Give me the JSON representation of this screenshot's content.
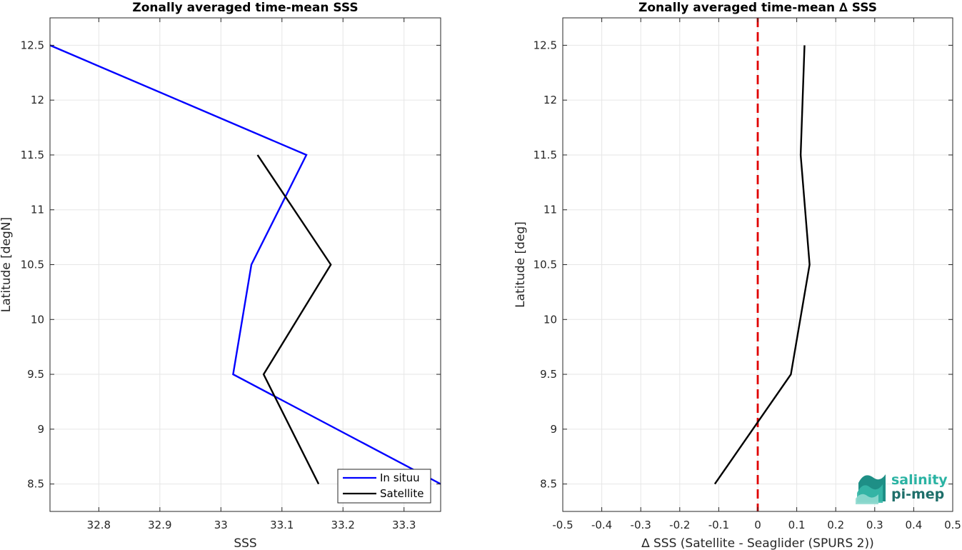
{
  "chart_data": [
    {
      "type": "line",
      "title": "Zonally averaged time-mean SSS",
      "xlabel": "SSS",
      "ylabel": "Latitude [degN]",
      "xlim": [
        32.72,
        33.36
      ],
      "ylim": [
        8.25,
        12.75
      ],
      "xticks": [
        32.8,
        32.9,
        33.0,
        33.1,
        33.2,
        33.3
      ],
      "xtick_labels": [
        "32.8",
        "32.9",
        "33",
        "33.1",
        "33.2",
        "33.3"
      ],
      "yticks": [
        8.5,
        9,
        9.5,
        10,
        10.5,
        11,
        11.5,
        12,
        12.5
      ],
      "ytick_labels": [
        "8.5",
        "9",
        "9.5",
        "10",
        "10.5",
        "11",
        "11.5",
        "12",
        "12.5"
      ],
      "grid": true,
      "legend_position": "bottom-right",
      "series": [
        {
          "name": "In situu",
          "color": "#0000ff",
          "x": [
            33.36,
            33.02,
            33.05,
            33.14,
            32.72
          ],
          "y": [
            8.5,
            9.5,
            10.5,
            11.5,
            12.5
          ]
        },
        {
          "name": "Satellite",
          "color": "#000000",
          "x": [
            33.16,
            33.07,
            33.18,
            33.06
          ],
          "y": [
            8.5,
            9.5,
            10.5,
            11.5
          ]
        }
      ]
    },
    {
      "type": "line",
      "title": "Zonally averaged time-mean ∆ SSS",
      "xlabel": "∆ SSS (Satellite - Seaglider (SPURS 2))",
      "ylabel": "Latitude [deg]",
      "xlim": [
        -0.5,
        0.5
      ],
      "ylim": [
        8.25,
        12.75
      ],
      "xticks": [
        -0.5,
        -0.4,
        -0.3,
        -0.2,
        -0.1,
        0,
        0.1,
        0.2,
        0.3,
        0.4,
        0.5
      ],
      "xtick_labels": [
        "-0.5",
        "-0.4",
        "-0.3",
        "-0.2",
        "-0.1",
        "0",
        "0.1",
        "0.2",
        "0.3",
        "0.4",
        "0.5"
      ],
      "yticks": [
        8.5,
        9,
        9.5,
        10,
        10.5,
        11,
        11.5,
        12,
        12.5
      ],
      "ytick_labels": [
        "8.5",
        "9",
        "9.5",
        "10",
        "10.5",
        "11",
        "11.5",
        "12",
        "12.5"
      ],
      "grid": true,
      "reference_line": {
        "x": 0,
        "color": "#e00000",
        "style": "dashed"
      },
      "series": [
        {
          "color": "#000000",
          "x": [
            -0.11,
            0.085,
            0.133,
            0.11,
            0.12
          ],
          "y": [
            8.5,
            9.5,
            10.5,
            11.5,
            12.5
          ]
        }
      ]
    }
  ],
  "logo": {
    "line1": "salinity",
    "line2": "pi-mep",
    "color1": "#2ab3a3",
    "color2": "#1e6f6a"
  }
}
